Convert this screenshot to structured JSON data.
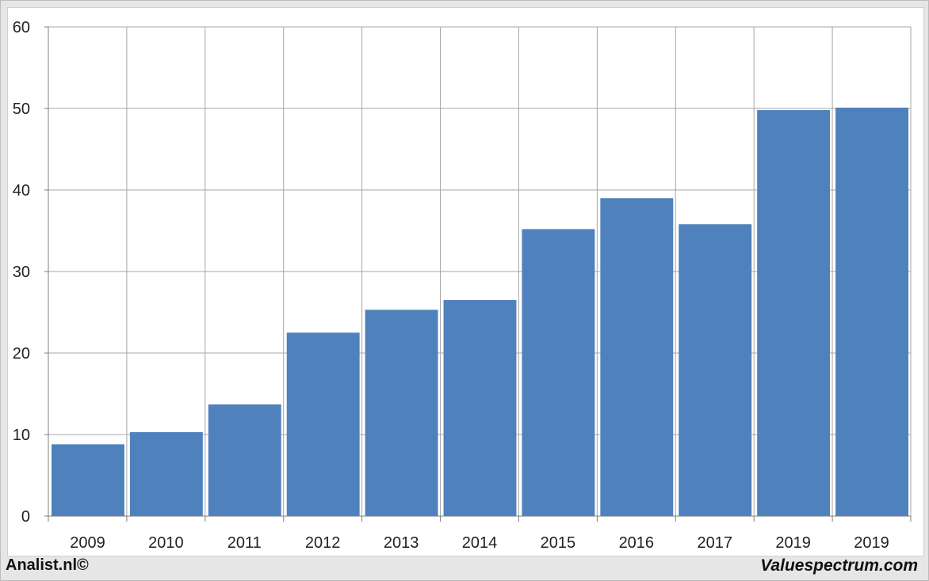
{
  "chart_data": {
    "type": "bar",
    "categories": [
      "2009",
      "2010",
      "2011",
      "2012",
      "2013",
      "2014",
      "2015",
      "2016",
      "2017",
      "2019",
      "2019"
    ],
    "values": [
      8.8,
      10.3,
      13.7,
      22.5,
      25.3,
      26.5,
      35.2,
      39.0,
      35.8,
      49.8,
      50.1
    ],
    "title": "",
    "xlabel": "",
    "ylabel": "",
    "ylim": [
      0,
      60
    ],
    "yticks": [
      0,
      10,
      20,
      30,
      40,
      50,
      60
    ],
    "grid": true,
    "bar_color": "#4f81bd",
    "gridline_color": "#a6a6a6"
  },
  "footer": {
    "left_text": "Analist.nl©",
    "right_text": "Valuespectrum.com"
  }
}
